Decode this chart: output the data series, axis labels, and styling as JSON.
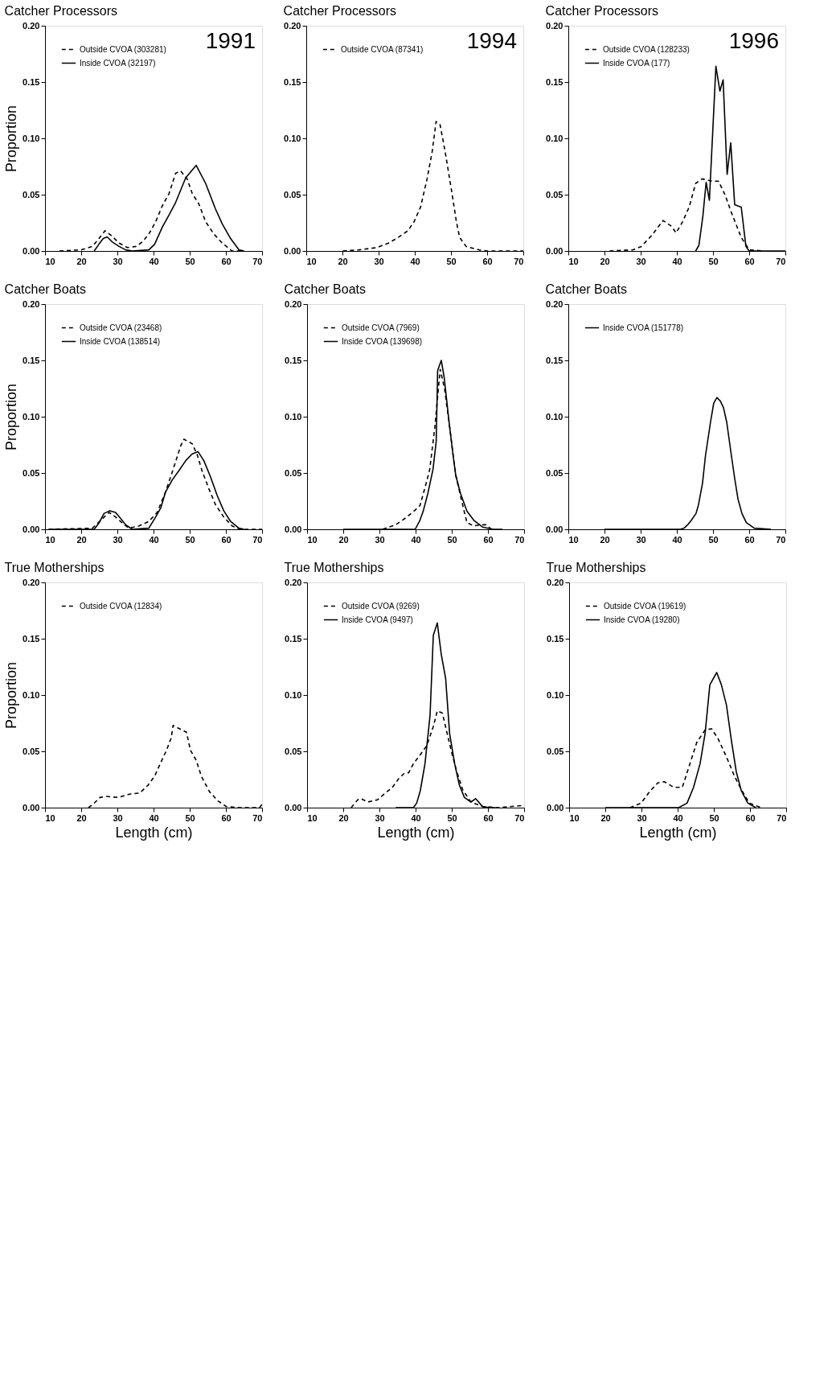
{
  "chart_data": [
    {
      "type": "line",
      "title": "Catcher Processors",
      "annotations": [
        "1991"
      ],
      "ylabel": "Proportion",
      "xlim": [
        10,
        70
      ],
      "xticks": [
        10,
        20,
        30,
        40,
        50,
        60,
        70
      ],
      "ylim": [
        0,
        0.2
      ],
      "yticks": [
        {
          "value": 0,
          "label": "0.00"
        },
        {
          "value": 0.05,
          "label": "0.05"
        },
        {
          "value": 0.1,
          "label": "0.10"
        },
        {
          "value": 0.15,
          "label": "0.15"
        },
        {
          "value": 0.2,
          "label": "0.20"
        }
      ],
      "legend": "top left",
      "series": [
        {
          "name": "Outside CVOA (303281)",
          "color": "#000000",
          "line_style": "dashed",
          "x": [
            14,
            20,
            23.1,
            24.9,
            26.6,
            28.2,
            30.5,
            32.8,
            35.1,
            36.9,
            38.7,
            40.6,
            42.4,
            44.3,
            46.1,
            47.5,
            49.3,
            50.7,
            52.5,
            54.4,
            56.7,
            59,
            61.7,
            64
          ],
          "values": [
            0,
            0.001,
            0.004,
            0.011,
            0.018,
            0.014,
            0.007,
            0.003,
            0.004,
            0.008,
            0.015,
            0.026,
            0.04,
            0.051,
            0.069,
            0.071,
            0.064,
            0.051,
            0.042,
            0.026,
            0.015,
            0.007,
            0,
            0
          ]
        },
        {
          "name": "Inside CVOA (32197)",
          "color": "#000000",
          "line_style": "solid",
          "x": [
            23.6,
            24.9,
            26.1,
            27.2,
            28.6,
            30.5,
            32.3,
            34.1,
            38.7,
            40.3,
            42.4,
            44.3,
            46.1,
            48.9,
            51.8,
            54.4,
            57.1,
            59,
            61.3,
            63.6,
            65
          ],
          "values": [
            0,
            0.006,
            0.011,
            0.0125,
            0.008,
            0.004,
            0.001,
            0,
            0.001,
            0.006,
            0.021,
            0.032,
            0.043,
            0.065,
            0.076,
            0.06,
            0.0375,
            0.024,
            0.011,
            0.001,
            0
          ]
        }
      ]
    },
    {
      "type": "line",
      "title": "Catcher Processors",
      "annotations": [
        "1994"
      ],
      "xlim": [
        10,
        70
      ],
      "xticks": [
        10,
        20,
        30,
        40,
        50,
        60,
        70
      ],
      "ylim": [
        0,
        0.2
      ],
      "yticks": [
        {
          "value": 0,
          "label": "0.00"
        },
        {
          "value": 0.05,
          "label": "0.05"
        },
        {
          "value": 0.1,
          "label": "0.10"
        },
        {
          "value": 0.15,
          "label": "0.15"
        },
        {
          "value": 0.2,
          "label": "0.20"
        }
      ],
      "legend": "top left",
      "series": [
        {
          "name": "Outside CVOA (87341)",
          "color": "#000000",
          "line_style": "dashed",
          "x": [
            20.1,
            24.6,
            29.5,
            32.7,
            35.4,
            38.1,
            39.8,
            41.6,
            43.4,
            44.8,
            45.9,
            47,
            48.4,
            50.2,
            51.5,
            52.4,
            54.2,
            57.8,
            60,
            70
          ],
          "values": [
            0,
            0.001,
            0.003,
            0.007,
            0.012,
            0.018,
            0.026,
            0.039,
            0.064,
            0.088,
            0.115,
            0.112,
            0.088,
            0.053,
            0.026,
            0.012,
            0.004,
            0.001,
            0,
            0
          ]
        }
      ]
    },
    {
      "type": "line",
      "title": "Catcher Processors",
      "annotations": [
        "1996"
      ],
      "xlim": [
        10,
        70
      ],
      "xticks": [
        10,
        20,
        30,
        40,
        50,
        60,
        70
      ],
      "ylim": [
        0,
        0.2
      ],
      "yticks": [
        {
          "value": 0,
          "label": "0.00"
        },
        {
          "value": 0.05,
          "label": "0.05"
        },
        {
          "value": 0.1,
          "label": "0.10"
        },
        {
          "value": 0.15,
          "label": "0.15"
        },
        {
          "value": 0.2,
          "label": "0.20"
        }
      ],
      "legend": "top left",
      "series": [
        {
          "name": "Outside CVOA (128233)",
          "color": "#000000",
          "line_style": "dashed",
          "x": [
            21.4,
            27.9,
            30.2,
            33.1,
            36.2,
            38.5,
            39.8,
            41.6,
            43.4,
            45.2,
            47,
            49.7,
            51.5,
            53.3,
            55.1,
            57.8,
            60,
            64
          ],
          "values": [
            0,
            0.001,
            0.004,
            0.014,
            0.027,
            0.022,
            0.016,
            0.026,
            0.039,
            0.06,
            0.064,
            0.062,
            0.062,
            0.05,
            0.034,
            0.012,
            0.001,
            0
          ]
        },
        {
          "name": "Inside CVOA (177)",
          "color": "#000000",
          "line_style": "solid",
          "x": [
            45.2,
            46.1,
            47.2,
            48.1,
            49,
            50.8,
            51.9,
            52.8,
            53.9,
            54.9,
            56,
            57.8,
            59.1,
            60,
            70
          ],
          "values": [
            0,
            0.005,
            0.031,
            0.061,
            0.045,
            0.164,
            0.142,
            0.152,
            0.068,
            0.096,
            0.041,
            0.039,
            0.004,
            0,
            0
          ]
        }
      ]
    },
    {
      "type": "line",
      "title": "Catcher Boats",
      "ylabel": "Proportion",
      "xlim": [
        10,
        70
      ],
      "xticks": [
        10,
        20,
        30,
        40,
        50,
        60,
        70
      ],
      "ylim": [
        0,
        0.2
      ],
      "yticks": [
        {
          "value": 0,
          "label": "0.00"
        },
        {
          "value": 0.05,
          "label": "0.05"
        },
        {
          "value": 0.1,
          "label": "0.10"
        },
        {
          "value": 0.15,
          "label": "0.15"
        },
        {
          "value": 0.2,
          "label": "0.20"
        }
      ],
      "legend": "top left",
      "series": [
        {
          "name": "Outside CVOA (23468)",
          "color": "#000000",
          "line_style": "dashed",
          "x": [
            11,
            23.1,
            25.4,
            27.7,
            29.5,
            31.4,
            33.2,
            36,
            38.7,
            41,
            43.3,
            45.6,
            47.5,
            48.4,
            50.7,
            52.1,
            53.4,
            55.3,
            57.1,
            59.4,
            61.7,
            64,
            70
          ],
          "values": [
            0,
            0.001,
            0.008,
            0.015,
            0.011,
            0.0055,
            0.001,
            0.003,
            0.007,
            0.015,
            0.033,
            0.055,
            0.074,
            0.08,
            0.076,
            0.066,
            0.052,
            0.036,
            0.022,
            0.011,
            0.003,
            0,
            0
          ]
        },
        {
          "name": "Inside CVOA (138514)",
          "color": "#000000",
          "line_style": "solid",
          "x": [
            11,
            23.6,
            24.9,
            26.3,
            27.9,
            29.5,
            30.9,
            32.3,
            34.1,
            38.7,
            40.6,
            42,
            43.3,
            45.2,
            47,
            48.9,
            50.7,
            52.3,
            53.9,
            55.7,
            57.6,
            59.4,
            61.3,
            63.6,
            65
          ],
          "values": [
            0,
            0,
            0.0055,
            0.014,
            0.0165,
            0.015,
            0.0096,
            0.004,
            0,
            0.001,
            0.011,
            0.019,
            0.033,
            0.044,
            0.052,
            0.061,
            0.067,
            0.069,
            0.061,
            0.047,
            0.03,
            0.0165,
            0.007,
            0.001,
            0
          ]
        }
      ]
    },
    {
      "type": "line",
      "title": "Catcher Boats",
      "xlim": [
        10,
        70
      ],
      "xticks": [
        10,
        20,
        30,
        40,
        50,
        60,
        70
      ],
      "ylim": [
        0,
        0.2
      ],
      "yticks": [
        {
          "value": 0,
          "label": "0.00"
        },
        {
          "value": 0.05,
          "label": "0.05"
        },
        {
          "value": 0.1,
          "label": "0.10"
        },
        {
          "value": 0.15,
          "label": "0.15"
        },
        {
          "value": 0.2,
          "label": "0.20"
        }
      ],
      "legend": "top left",
      "series": [
        {
          "name": "Outside CVOA (7969)",
          "color": "#000000",
          "line_style": "dashed",
          "x": [
            30.9,
            34.5,
            37.2,
            39.5,
            41.2,
            42.6,
            43.9,
            45.3,
            46.8,
            48,
            49.3,
            50.4,
            51.1,
            52.4,
            53.5,
            54.2,
            56,
            58,
            59.5,
            61,
            62
          ],
          "values": [
            0,
            0.004,
            0.01,
            0.016,
            0.021,
            0.037,
            0.053,
            0.09,
            0.142,
            0.125,
            0.094,
            0.065,
            0.048,
            0.03,
            0.015,
            0.006,
            0.003,
            0.004,
            0.004,
            0,
            0
          ]
        },
        {
          "name": "Inside CVOA (139698)",
          "color": "#000000",
          "line_style": "solid",
          "x": [
            20,
            39.9,
            41.2,
            42.1,
            43.4,
            44.8,
            45.7,
            46.1,
            47.1,
            47.9,
            49.3,
            50.4,
            51.1,
            52.4,
            54.2,
            56.1,
            58.5,
            61.4,
            64
          ],
          "values": [
            0,
            0,
            0.008,
            0.016,
            0.032,
            0.053,
            0.078,
            0.141,
            0.15,
            0.135,
            0.094,
            0.065,
            0.048,
            0.032,
            0.016,
            0.008,
            0.002,
            0,
            0
          ]
        }
      ]
    },
    {
      "type": "line",
      "title": "Catcher Boats",
      "xlim": [
        10,
        70
      ],
      "xticks": [
        10,
        20,
        30,
        40,
        50,
        60,
        70
      ],
      "ylim": [
        0,
        0.2
      ],
      "yticks": [
        {
          "value": 0,
          "label": "0.00"
        },
        {
          "value": 0.05,
          "label": "0.05"
        },
        {
          "value": 0.1,
          "label": "0.10"
        },
        {
          "value": 0.15,
          "label": "0.15"
        },
        {
          "value": 0.2,
          "label": "0.20"
        }
      ],
      "legend": "top left",
      "series": [
        {
          "name": "Inside CVOA (151778)",
          "color": "#000000",
          "line_style": "solid",
          "x": [
            20,
            41,
            42,
            43,
            44,
            45.3,
            46,
            47.1,
            47.9,
            49.3,
            50.2,
            51.1,
            52,
            52.9,
            53.8,
            55.1,
            56,
            56.9,
            58,
            59.2,
            61.4,
            66
          ],
          "values": [
            0,
            0,
            0.001,
            0.004,
            0.008,
            0.014,
            0.022,
            0.041,
            0.065,
            0.095,
            0.112,
            0.117,
            0.114,
            0.108,
            0.095,
            0.065,
            0.045,
            0.027,
            0.014,
            0.006,
            0.001,
            0
          ]
        }
      ]
    },
    {
      "type": "line",
      "title": "True Motherships",
      "ylabel": "Proportion",
      "xlabel": "Length (cm)",
      "xlim": [
        10,
        70
      ],
      "xticks": [
        10,
        20,
        30,
        40,
        50,
        60,
        70
      ],
      "ylim": [
        0,
        0.2
      ],
      "yticks": [
        {
          "value": 0,
          "label": "0.00"
        },
        {
          "value": 0.05,
          "label": "0.05"
        },
        {
          "value": 0.1,
          "label": "0.10"
        },
        {
          "value": 0.15,
          "label": "0.15"
        },
        {
          "value": 0.2,
          "label": "0.20"
        }
      ],
      "legend": "top left",
      "series": [
        {
          "name": "Outside CVOA (12834)",
          "color": "#000000",
          "line_style": "dashed",
          "x": [
            22,
            23.3,
            25.2,
            27,
            30.2,
            33.4,
            36.2,
            38.5,
            40.3,
            41.7,
            43.6,
            44.9,
            45.4,
            47.2,
            49.1,
            50.2,
            51.8,
            53.2,
            55.5,
            57.8,
            60.1,
            63.8,
            69.3,
            70
          ],
          "values": [
            0,
            0.003,
            0.009,
            0.01,
            0.009,
            0.012,
            0.013,
            0.02,
            0.028,
            0.038,
            0.051,
            0.062,
            0.073,
            0.07,
            0.067,
            0.051,
            0.042,
            0.028,
            0.014,
            0.006,
            0.001,
            0,
            0,
            0.003
          ]
        }
      ]
    },
    {
      "type": "line",
      "title": "True Motherships",
      "xlabel": "Length (cm)",
      "xlim": [
        10,
        70
      ],
      "xticks": [
        10,
        20,
        30,
        40,
        50,
        60,
        70
      ],
      "ylim": [
        0,
        0.2
      ],
      "yticks": [
        {
          "value": 0,
          "label": "0.00"
        },
        {
          "value": 0.05,
          "label": "0.05"
        },
        {
          "value": 0.1,
          "label": "0.10"
        },
        {
          "value": 0.15,
          "label": "0.15"
        },
        {
          "value": 0.2,
          "label": "0.20"
        }
      ],
      "legend": "top left",
      "series": [
        {
          "name": "Outside CVOA (9269)",
          "color": "#000000",
          "line_style": "dashed",
          "x": [
            22.2,
            24,
            24.9,
            26.8,
            29.5,
            31.3,
            33.6,
            35.4,
            36.7,
            38.1,
            39.4,
            41.3,
            43.1,
            44.9,
            46,
            47.4,
            48.5,
            49.9,
            51.2,
            53,
            55.3,
            58.5,
            63,
            70
          ],
          "values": [
            0,
            0.007,
            0.008,
            0.005,
            0.007,
            0.012,
            0.018,
            0.026,
            0.03,
            0.031,
            0.039,
            0.047,
            0.055,
            0.072,
            0.086,
            0.084,
            0.069,
            0.05,
            0.034,
            0.016,
            0.005,
            0.001,
            0,
            0.002
          ]
        },
        {
          "name": "Inside CVOA (9497)",
          "color": "#000000",
          "line_style": "solid",
          "x": [
            34.5,
            39.4,
            40.3,
            41.3,
            42.6,
            44,
            44.9,
            46,
            47.1,
            48.3,
            49.4,
            50.8,
            52.1,
            53.5,
            55.3,
            56.6,
            58.5,
            60.3,
            62
          ],
          "values": [
            0,
            0,
            0.004,
            0.015,
            0.039,
            0.082,
            0.153,
            0.164,
            0.136,
            0.115,
            0.066,
            0.039,
            0.02,
            0.009,
            0.005,
            0.008,
            0.001,
            0,
            0
          ]
        }
      ]
    },
    {
      "type": "line",
      "title": "True Motherships",
      "xlabel": "Length (cm)",
      "xlim": [
        10,
        70
      ],
      "xticks": [
        10,
        20,
        30,
        40,
        50,
        60,
        70
      ],
      "ylim": [
        0,
        0.2
      ],
      "yticks": [
        {
          "value": 0,
          "label": "0.00"
        },
        {
          "value": 0.05,
          "label": "0.05"
        },
        {
          "value": 0.1,
          "label": "0.10"
        },
        {
          "value": 0.15,
          "label": "0.15"
        },
        {
          "value": 0.2,
          "label": "0.20"
        }
      ],
      "legend": "top left",
      "series": [
        {
          "name": "Outside CVOA (19619)",
          "color": "#000000",
          "line_style": "dashed",
          "x": [
            26.8,
            29.9,
            32.2,
            34.5,
            36.3,
            39,
            41.3,
            43.1,
            45.3,
            47.6,
            49.4,
            51.2,
            53.5,
            55.7,
            57.6,
            59.8,
            63
          ],
          "values": [
            0,
            0.004,
            0.014,
            0.022,
            0.023,
            0.018,
            0.018,
            0.036,
            0.058,
            0.069,
            0.07,
            0.061,
            0.045,
            0.028,
            0.016,
            0.004,
            0
          ]
        },
        {
          "name": "Inside CVOA (19280)",
          "color": "#000000",
          "line_style": "solid",
          "x": [
            20,
            40.3,
            42.6,
            44.4,
            46.2,
            47.6,
            48.9,
            50.8,
            52.1,
            53.5,
            54.8,
            56.2,
            57.6,
            59.4,
            61.6
          ],
          "values": [
            0,
            0,
            0.004,
            0.018,
            0.039,
            0.066,
            0.109,
            0.12,
            0.109,
            0.091,
            0.061,
            0.032,
            0.015,
            0.004,
            0
          ]
        }
      ]
    }
  ]
}
